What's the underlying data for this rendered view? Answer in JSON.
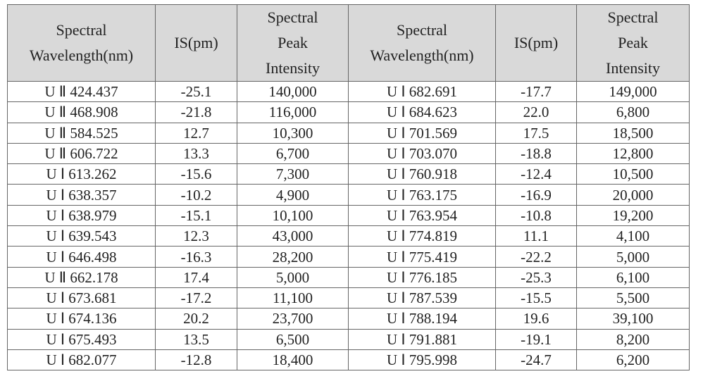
{
  "table": {
    "header": [
      [
        "Spectral",
        "Wavelength(nm)"
      ],
      [
        "IS(pm)"
      ],
      [
        "Spectral",
        "Peak",
        "Intensity"
      ],
      [
        "Spectral",
        "Wavelength(nm)"
      ],
      [
        "IS(pm)"
      ],
      [
        "Spectral",
        "Peak",
        "Intensity"
      ]
    ],
    "rows": [
      [
        "U Ⅱ 424.437",
        "-25.1",
        "140,000",
        "U Ⅰ 682.691",
        "-17.7",
        "149,000"
      ],
      [
        "U Ⅱ 468.908",
        "-21.8",
        "116,000",
        "U Ⅰ 684.623",
        "22.0",
        "6,800"
      ],
      [
        "U Ⅱ 584.525",
        "12.7",
        "10,300",
        "U Ⅰ 701.569",
        "17.5",
        "18,500"
      ],
      [
        "U Ⅱ 606.722",
        "13.3",
        "6,700",
        "U Ⅰ 703.070",
        "-18.8",
        "12,800"
      ],
      [
        "U Ⅰ 613.262",
        "-15.6",
        "7,300",
        "U Ⅰ 760.918",
        "-12.4",
        "10,500"
      ],
      [
        "U Ⅰ 638.357",
        "-10.2",
        "4,900",
        "U Ⅰ 763.175",
        "-16.9",
        "20,000"
      ],
      [
        "U Ⅰ 638.979",
        "-15.1",
        "10,100",
        "U Ⅰ 763.954",
        "-10.8",
        "19,200"
      ],
      [
        "U Ⅰ 639.543",
        "12.3",
        "43,000",
        "U Ⅰ 774.819",
        "11.1",
        "4,100"
      ],
      [
        "U Ⅰ 646.498",
        "-16.3",
        "28,200",
        "U Ⅰ 775.419",
        "-22.2",
        "5,000"
      ],
      [
        "U Ⅱ 662.178",
        "17.4",
        "5,000",
        "U Ⅰ 776.185",
        "-25.3",
        "6,100"
      ],
      [
        "U Ⅰ 673.681",
        "-17.2",
        "11,100",
        "U Ⅰ 787.539",
        "-15.5",
        "5,500"
      ],
      [
        "U Ⅰ 674.136",
        "20.2",
        "23,700",
        "U Ⅰ 788.194",
        "19.6",
        "39,100"
      ],
      [
        "U Ⅰ 675.493",
        "13.5",
        "6,500",
        "U Ⅰ 791.881",
        "-19.1",
        "8,200"
      ],
      [
        "U Ⅰ 682.077",
        "-12.8",
        "18,400",
        "U Ⅰ 795.998",
        "-24.7",
        "6,200"
      ]
    ]
  }
}
